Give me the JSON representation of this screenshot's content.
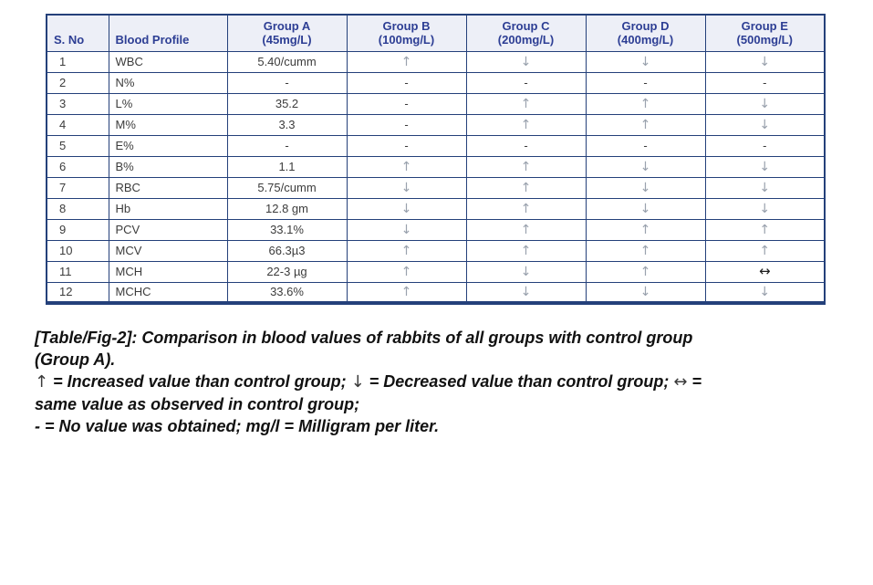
{
  "table": {
    "columns": [
      {
        "name": "S. No",
        "dose": ""
      },
      {
        "name": "Blood Profile",
        "dose": ""
      },
      {
        "name": "Group A",
        "dose": "(45mg/L)"
      },
      {
        "name": "Group B",
        "dose": "(100mg/L)"
      },
      {
        "name": "Group C",
        "dose": "(200mg/L)"
      },
      {
        "name": "Group D",
        "dose": "(400mg/L)"
      },
      {
        "name": "Group E",
        "dose": "(500mg/L)"
      }
    ],
    "symbols": {
      "up": "↑",
      "down": "↓",
      "same": "↔",
      "dash": "-"
    },
    "rows": [
      {
        "sno": "1",
        "profile": "WBC",
        "group_a": "5.40/cumm",
        "group_b": "up",
        "group_c": "down",
        "group_d": "down",
        "group_e": "down"
      },
      {
        "sno": "2",
        "profile": "N%",
        "group_a": "-",
        "group_b": "dash",
        "group_c": "dash",
        "group_d": "dash",
        "group_e": "dash"
      },
      {
        "sno": "3",
        "profile": "L%",
        "group_a": "35.2",
        "group_b": "dash",
        "group_c": "up",
        "group_d": "up",
        "group_e": "down"
      },
      {
        "sno": "4",
        "profile": "M%",
        "group_a": "3.3",
        "group_b": "dash",
        "group_c": "up",
        "group_d": "up",
        "group_e": "down"
      },
      {
        "sno": "5",
        "profile": "E%",
        "group_a": "-",
        "group_b": "dash",
        "group_c": "dash",
        "group_d": "dash",
        "group_e": "dash"
      },
      {
        "sno": "6",
        "profile": "B%",
        "group_a": "1.1",
        "group_b": "up",
        "group_c": "up",
        "group_d": "down",
        "group_e": "down"
      },
      {
        "sno": "7",
        "profile": "RBC",
        "group_a": "5.75/cumm",
        "group_b": "down",
        "group_c": "up",
        "group_d": "down",
        "group_e": "down"
      },
      {
        "sno": "8",
        "profile": "Hb",
        "group_a": "12.8 gm",
        "group_b": "down",
        "group_c": "up",
        "group_d": "down",
        "group_e": "down"
      },
      {
        "sno": "9",
        "profile": "PCV",
        "group_a": "33.1%",
        "group_b": "down",
        "group_c": "up",
        "group_d": "up",
        "group_e": "up"
      },
      {
        "sno": "10",
        "profile": "MCV",
        "group_a": "66.3µ3",
        "group_b": "up",
        "group_c": "up",
        "group_d": "up",
        "group_e": "up"
      },
      {
        "sno": "11",
        "profile": "MCH",
        "group_a": "22-3 µg",
        "group_b": "up",
        "group_c": "down",
        "group_d": "up",
        "group_e": "same"
      },
      {
        "sno": "12",
        "profile": "MCHC",
        "group_a": "33.6%",
        "group_b": "up",
        "group_c": "down",
        "group_d": "down",
        "group_e": "down"
      }
    ]
  },
  "caption": {
    "lines": [
      "[Table/Fig-2]: Comparison in blood values of rabbits of all groups with control group",
      "(Group A).",
      "↑ = Increased value than control group; ↓ = Decreased value than control group; ↔ =",
      "same value as observed in control group;",
      "- = No value was obtained; mg/l = Milligram per liter."
    ]
  },
  "colors": {
    "border_navy": "#24407a",
    "header_text": "#2d3e94",
    "header_bg": "#edeff7",
    "body_text": "#3c3c3c",
    "arrow_gray": "#99a1ad",
    "arrow_same": "#1d1d1d"
  }
}
